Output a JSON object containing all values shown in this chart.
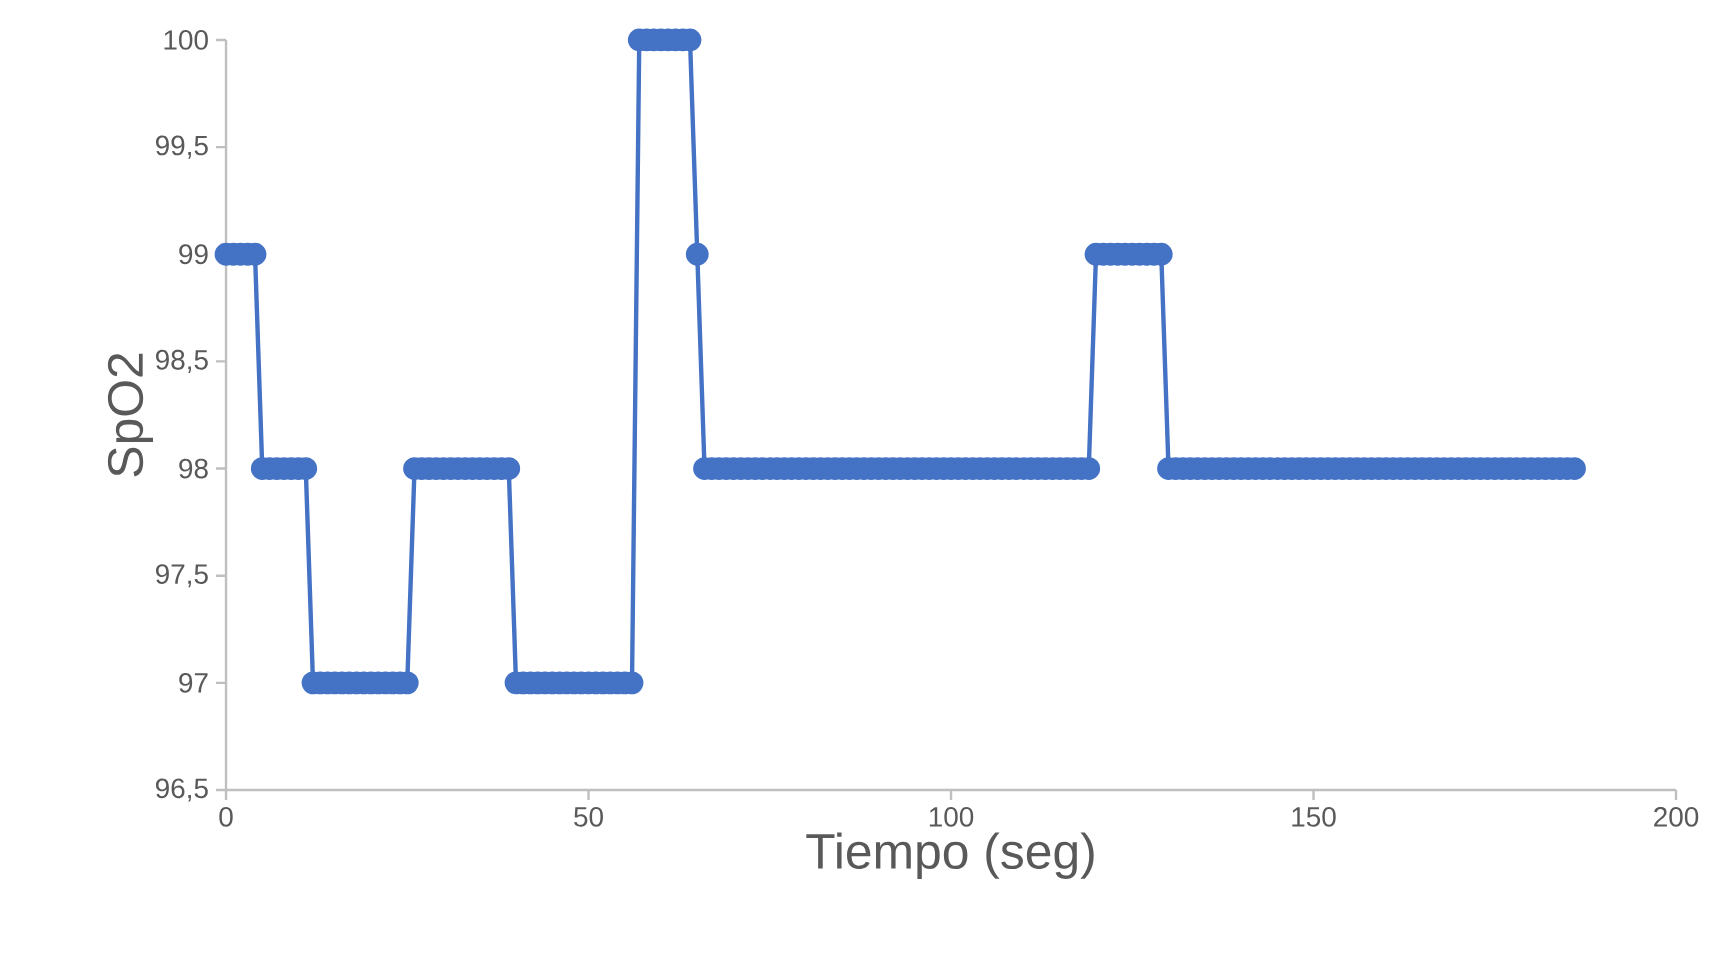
{
  "chart_data": {
    "type": "line",
    "xlabel": "Tiempo (seg)",
    "ylabel": "SpO2",
    "x": [
      0,
      1,
      2,
      3,
      4,
      5,
      6,
      7,
      8,
      9,
      10,
      11,
      12,
      13,
      14,
      15,
      16,
      17,
      18,
      19,
      20,
      21,
      22,
      23,
      24,
      25,
      26,
      27,
      28,
      29,
      30,
      31,
      32,
      33,
      34,
      35,
      36,
      37,
      38,
      39,
      40,
      41,
      42,
      43,
      44,
      45,
      46,
      47,
      48,
      49,
      50,
      51,
      52,
      53,
      54,
      55,
      56,
      57,
      58,
      59,
      60,
      61,
      62,
      63,
      64,
      65,
      66,
      67,
      68,
      69,
      70,
      71,
      72,
      73,
      74,
      75,
      76,
      77,
      78,
      79,
      80,
      81,
      82,
      83,
      84,
      85,
      86,
      87,
      88,
      89,
      90,
      91,
      92,
      93,
      94,
      95,
      96,
      97,
      98,
      99,
      100,
      101,
      102,
      103,
      104,
      105,
      106,
      107,
      108,
      109,
      110,
      111,
      112,
      113,
      114,
      115,
      116,
      117,
      118,
      119,
      120,
      121,
      122,
      123,
      124,
      125,
      126,
      127,
      128,
      129,
      130,
      131,
      132,
      133,
      134,
      135,
      136,
      137,
      138,
      139,
      140,
      141,
      142,
      143,
      144,
      145,
      146,
      147,
      148,
      149,
      150,
      151,
      152,
      153,
      154,
      155,
      156,
      157,
      158,
      159,
      160,
      161,
      162,
      163,
      164,
      165,
      166,
      167,
      168,
      169,
      170,
      171,
      172,
      173,
      174,
      175,
      176,
      177,
      178,
      179,
      180,
      181,
      182,
      183,
      184,
      185,
      186
    ],
    "series": [
      {
        "color": "#4472c4",
        "values": [
          99,
          99,
          99,
          99,
          99,
          98,
          98,
          98,
          98,
          98,
          98,
          98,
          97,
          97,
          97,
          97,
          97,
          97,
          97,
          97,
          97,
          97,
          97,
          97,
          97,
          97,
          98,
          98,
          98,
          98,
          98,
          98,
          98,
          98,
          98,
          98,
          98,
          98,
          98,
          98,
          97,
          97,
          97,
          97,
          97,
          97,
          97,
          97,
          97,
          97,
          97,
          97,
          97,
          97,
          97,
          97,
          97,
          100,
          100,
          100,
          100,
          100,
          100,
          100,
          100,
          99,
          98,
          98,
          98,
          98,
          98,
          98,
          98,
          98,
          98,
          98,
          98,
          98,
          98,
          98,
          98,
          98,
          98,
          98,
          98,
          98,
          98,
          98,
          98,
          98,
          98,
          98,
          98,
          98,
          98,
          98,
          98,
          98,
          98,
          98,
          98,
          98,
          98,
          98,
          98,
          98,
          98,
          98,
          98,
          98,
          98,
          98,
          98,
          98,
          98,
          98,
          98,
          98,
          98,
          98,
          99,
          99,
          99,
          99,
          99,
          99,
          99,
          99,
          99,
          99,
          98,
          98,
          98,
          98,
          98,
          98,
          98,
          98,
          98,
          98,
          98,
          98,
          98,
          98,
          98,
          98,
          98,
          98,
          98,
          98,
          98,
          98,
          98,
          98,
          98,
          98,
          98,
          98,
          98,
          98,
          98,
          98,
          98,
          98,
          98,
          98,
          98,
          98,
          98,
          98,
          98,
          98,
          98,
          98,
          98,
          98,
          98,
          98,
          98,
          98,
          98,
          98,
          98,
          98,
          98,
          98,
          98
        ]
      }
    ],
    "xlim": [
      0,
      200
    ],
    "xticks": [
      0,
      50,
      100,
      150,
      200
    ],
    "ylim": [
      96.5,
      100
    ],
    "yticks": [
      {
        "value": 96.5,
        "label": "96,5"
      },
      97,
      {
        "value": 97.5,
        "label": "97,5"
      },
      98,
      {
        "value": 98.5,
        "label": "98,5"
      },
      99,
      {
        "value": 99.5,
        "label": "99,5"
      },
      100
    ],
    "grid": false,
    "marker": "circle",
    "line_style": "solid"
  }
}
